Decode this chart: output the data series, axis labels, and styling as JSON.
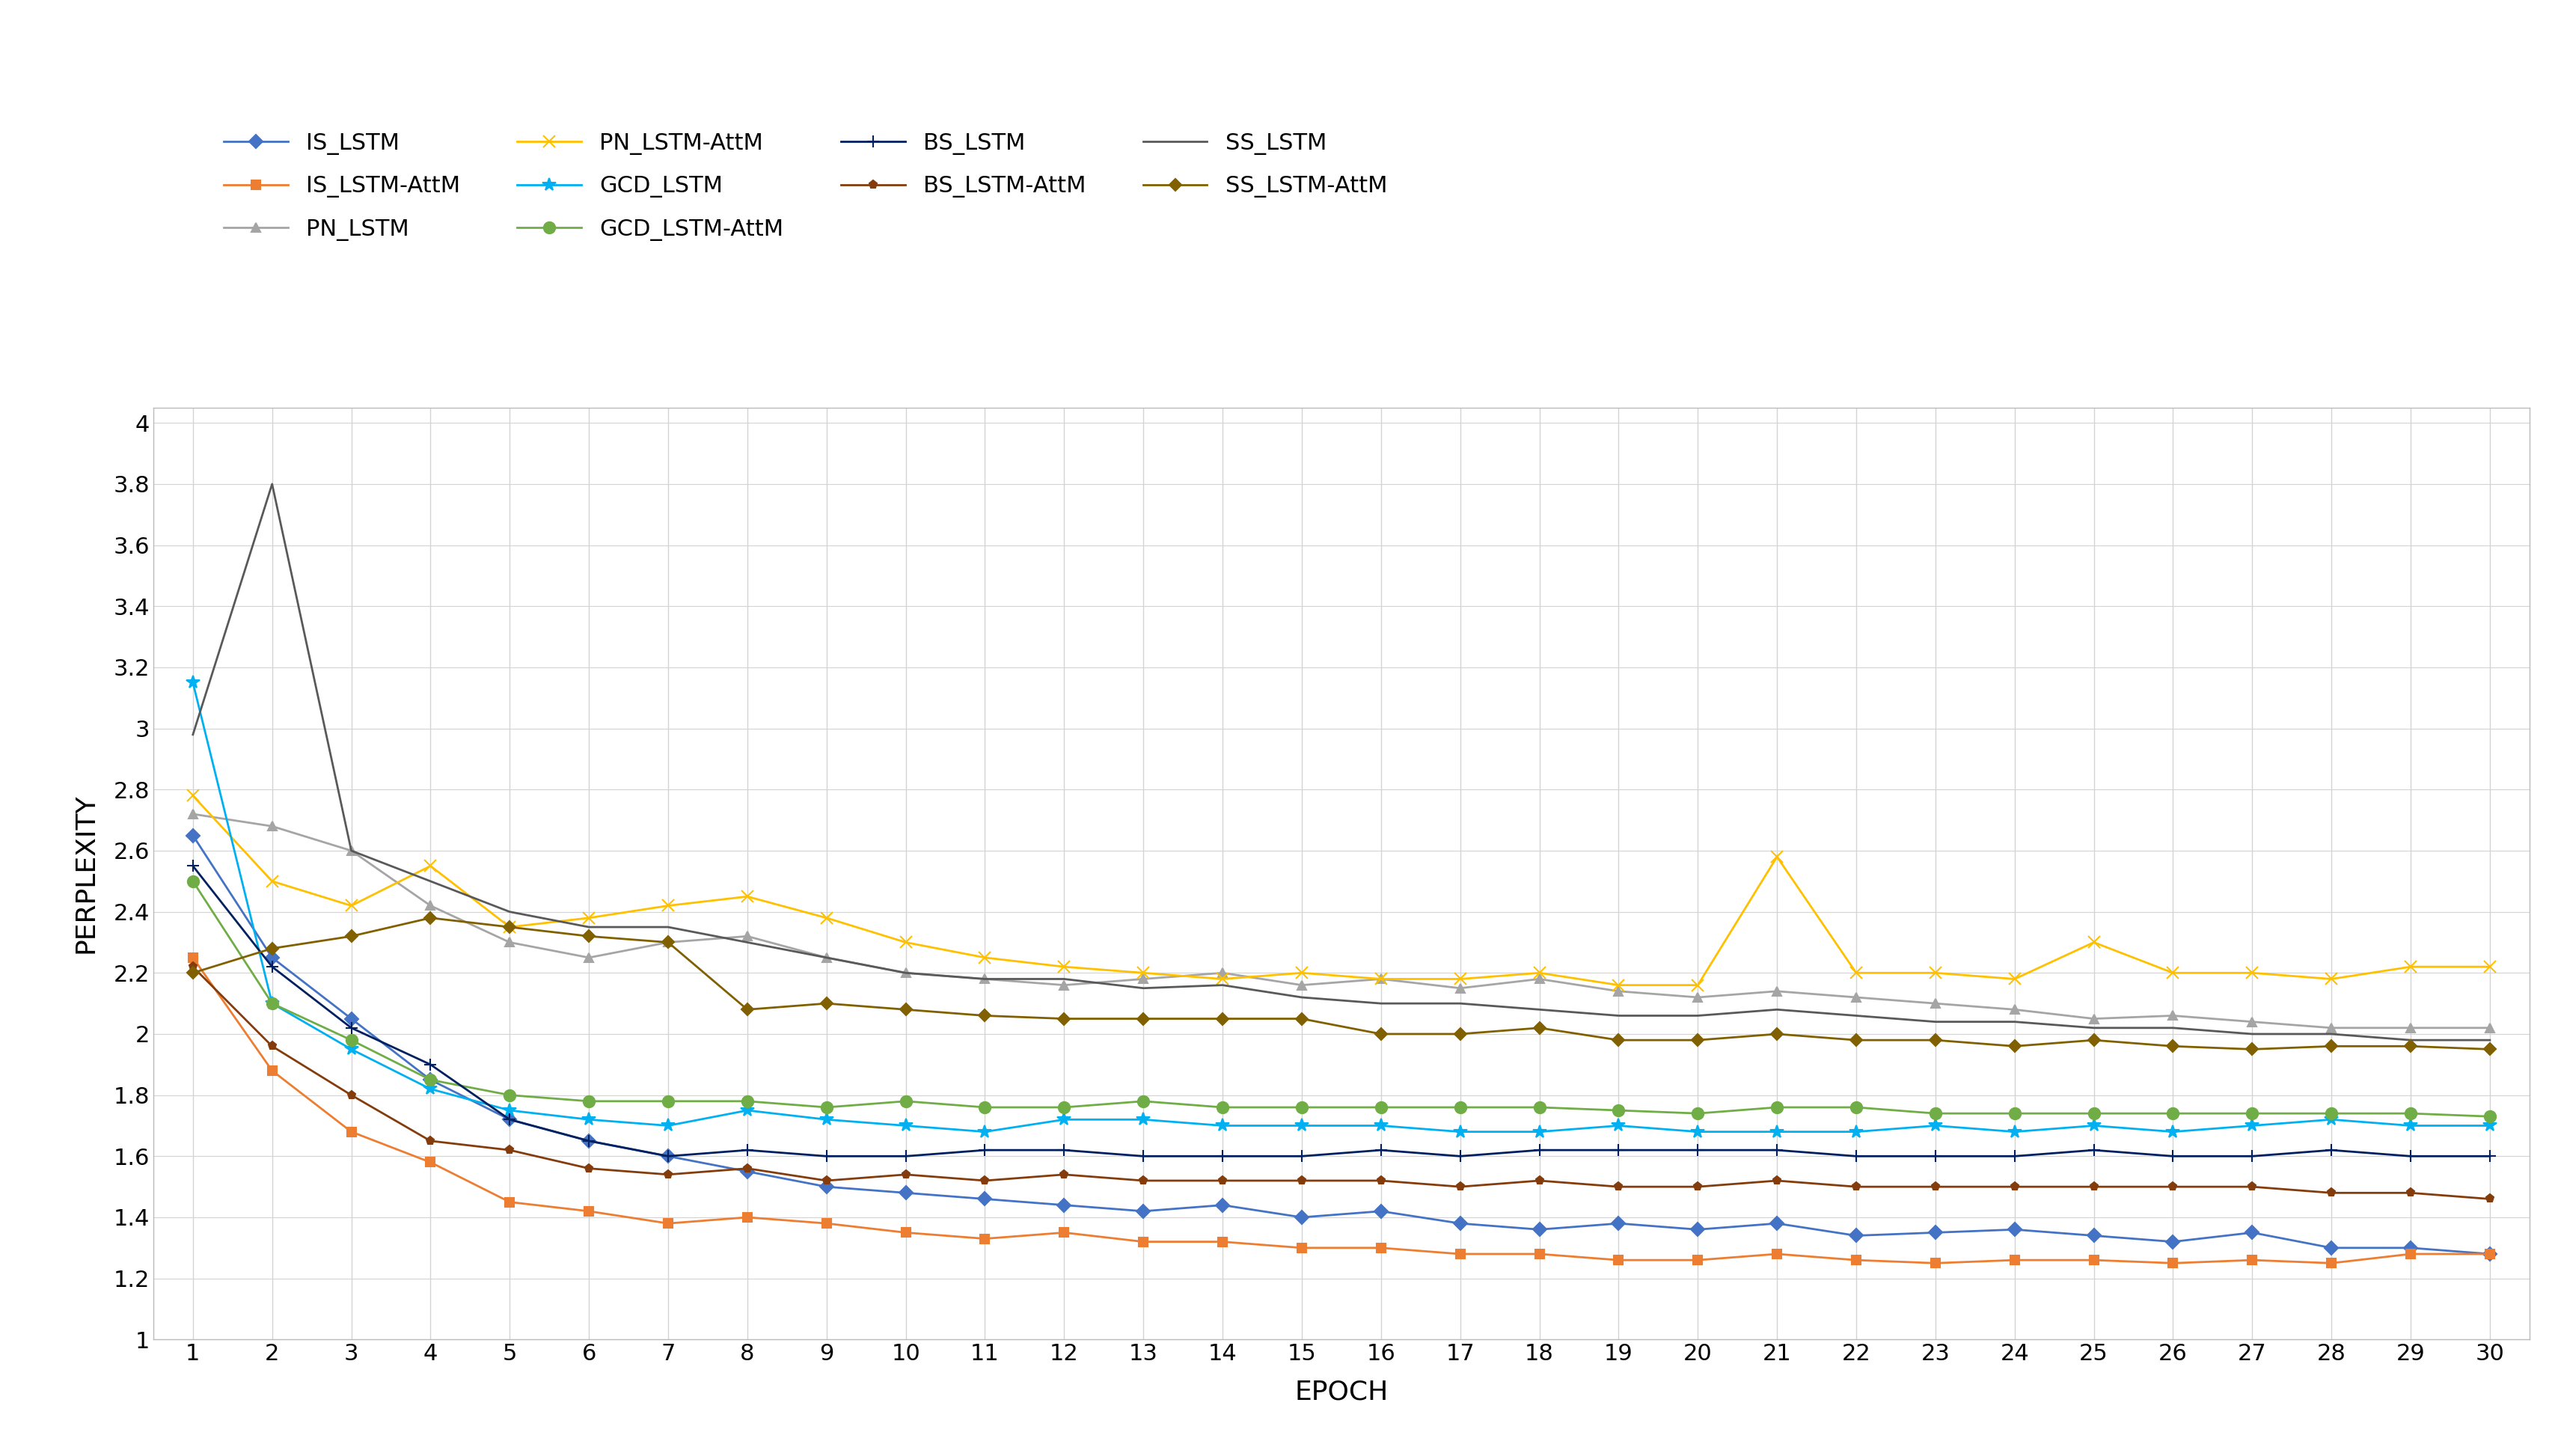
{
  "epochs": [
    1,
    2,
    3,
    4,
    5,
    6,
    7,
    8,
    9,
    10,
    11,
    12,
    13,
    14,
    15,
    16,
    17,
    18,
    19,
    20,
    21,
    22,
    23,
    24,
    25,
    26,
    27,
    28,
    29,
    30
  ],
  "series": {
    "IS_LSTM": {
      "values": [
        2.65,
        2.25,
        2.05,
        1.85,
        1.72,
        1.65,
        1.6,
        1.55,
        1.5,
        1.48,
        1.46,
        1.44,
        1.42,
        1.44,
        1.4,
        1.42,
        1.38,
        1.36,
        1.38,
        1.36,
        1.38,
        1.34,
        1.35,
        1.36,
        1.34,
        1.32,
        1.35,
        1.3,
        1.3,
        1.28
      ],
      "color": "#4472C4",
      "marker": "D",
      "markersize": 9
    },
    "IS_LSTM-AttM": {
      "values": [
        2.25,
        1.88,
        1.68,
        1.58,
        1.45,
        1.42,
        1.38,
        1.4,
        1.38,
        1.35,
        1.33,
        1.35,
        1.32,
        1.32,
        1.3,
        1.3,
        1.28,
        1.28,
        1.26,
        1.26,
        1.28,
        1.26,
        1.25,
        1.26,
        1.26,
        1.25,
        1.26,
        1.25,
        1.28,
        1.28
      ],
      "color": "#ED7D31",
      "marker": "s",
      "markersize": 9
    },
    "PN_LSTM": {
      "values": [
        2.72,
        2.68,
        2.6,
        2.42,
        2.3,
        2.25,
        2.3,
        2.32,
        2.25,
        2.2,
        2.18,
        2.16,
        2.18,
        2.2,
        2.16,
        2.18,
        2.15,
        2.18,
        2.14,
        2.12,
        2.14,
        2.12,
        2.1,
        2.08,
        2.05,
        2.06,
        2.04,
        2.02,
        2.02,
        2.02
      ],
      "color": "#A5A5A5",
      "marker": "^",
      "markersize": 9
    },
    "PN_LSTM-AttM": {
      "values": [
        2.78,
        2.5,
        2.42,
        2.55,
        2.35,
        2.38,
        2.42,
        2.45,
        2.38,
        2.3,
        2.25,
        2.22,
        2.2,
        2.18,
        2.2,
        2.18,
        2.18,
        2.2,
        2.16,
        2.16,
        2.58,
        2.2,
        2.2,
        2.18,
        2.3,
        2.2,
        2.2,
        2.18,
        2.22,
        2.22
      ],
      "color": "#FFC000",
      "marker": "x",
      "markersize": 11
    },
    "GCD_LSTM": {
      "values": [
        3.15,
        2.1,
        1.95,
        1.82,
        1.75,
        1.72,
        1.7,
        1.75,
        1.72,
        1.7,
        1.68,
        1.72,
        1.72,
        1.7,
        1.7,
        1.7,
        1.68,
        1.68,
        1.7,
        1.68,
        1.68,
        1.68,
        1.7,
        1.68,
        1.7,
        1.68,
        1.7,
        1.72,
        1.7,
        1.7
      ],
      "color": "#00B0F0",
      "marker": "*",
      "markersize": 13
    },
    "GCD_LSTM-AttM": {
      "values": [
        2.5,
        2.1,
        1.98,
        1.85,
        1.8,
        1.78,
        1.78,
        1.78,
        1.76,
        1.78,
        1.76,
        1.76,
        1.78,
        1.76,
        1.76,
        1.76,
        1.76,
        1.76,
        1.75,
        1.74,
        1.76,
        1.76,
        1.74,
        1.74,
        1.74,
        1.74,
        1.74,
        1.74,
        1.74,
        1.73
      ],
      "color": "#70AD47",
      "marker": "o",
      "markersize": 11
    },
    "BS_LSTM": {
      "values": [
        2.55,
        2.22,
        2.02,
        1.9,
        1.72,
        1.65,
        1.6,
        1.62,
        1.6,
        1.6,
        1.62,
        1.62,
        1.6,
        1.6,
        1.6,
        1.62,
        1.6,
        1.62,
        1.62,
        1.62,
        1.62,
        1.6,
        1.6,
        1.6,
        1.62,
        1.6,
        1.6,
        1.62,
        1.6,
        1.6
      ],
      "color": "#002060",
      "marker": "+",
      "markersize": 12
    },
    "BS_LSTM-AttM": {
      "values": [
        2.22,
        1.96,
        1.8,
        1.65,
        1.62,
        1.56,
        1.54,
        1.56,
        1.52,
        1.54,
        1.52,
        1.54,
        1.52,
        1.52,
        1.52,
        1.52,
        1.5,
        1.52,
        1.5,
        1.5,
        1.52,
        1.5,
        1.5,
        1.5,
        1.5,
        1.5,
        1.5,
        1.48,
        1.48,
        1.46
      ],
      "color": "#843C0C",
      "marker": "p",
      "markersize": 8
    },
    "SS_LSTM": {
      "values": [
        2.98,
        3.8,
        2.6,
        2.5,
        2.4,
        2.35,
        2.35,
        2.3,
        2.25,
        2.2,
        2.18,
        2.18,
        2.15,
        2.16,
        2.12,
        2.1,
        2.1,
        2.08,
        2.06,
        2.06,
        2.08,
        2.06,
        2.04,
        2.04,
        2.02,
        2.02,
        2.0,
        2.0,
        1.98,
        1.98
      ],
      "color": "#595959",
      "marker": null,
      "markersize": 0
    },
    "SS_LSTM-AttM": {
      "values": [
        2.2,
        2.28,
        2.32,
        2.38,
        2.35,
        2.32,
        2.3,
        2.08,
        2.1,
        2.08,
        2.06,
        2.05,
        2.05,
        2.05,
        2.05,
        2.0,
        2.0,
        2.02,
        1.98,
        1.98,
        2.0,
        1.98,
        1.98,
        1.96,
        1.98,
        1.96,
        1.95,
        1.96,
        1.96,
        1.95
      ],
      "color": "#806000",
      "marker": "D",
      "markersize": 8
    }
  },
  "xlabel": "EPOCH",
  "ylabel": "PERPLEXITY",
  "ylim": [
    1.0,
    4.05
  ],
  "yticks": [
    1.0,
    1.2,
    1.4,
    1.6,
    1.8,
    2.0,
    2.2,
    2.4,
    2.6,
    2.8,
    3.0,
    3.2,
    3.4,
    3.6,
    3.8,
    4.0
  ],
  "ytick_labels": [
    "1",
    "1.2",
    "1.4",
    "1.6",
    "1.8",
    "2",
    "2.2",
    "2.4",
    "2.6",
    "2.8",
    "3",
    "3.2",
    "3.4",
    "3.6",
    "3.8",
    "4"
  ],
  "background_color": "#FFFFFF",
  "grid_color": "#D3D3D3",
  "legend_order": [
    "IS_LSTM",
    "IS_LSTM-AttM",
    "PN_LSTM",
    "PN_LSTM-AttM",
    "GCD_LSTM",
    "GCD_LSTM-AttM",
    "BS_LSTM",
    "BS_LSTM-AttM",
    "SS_LSTM",
    "SS_LSTM-AttM"
  ],
  "linewidth": 2.0,
  "tick_fontsize": 22,
  "label_fontsize": 26,
  "legend_fontsize": 22
}
